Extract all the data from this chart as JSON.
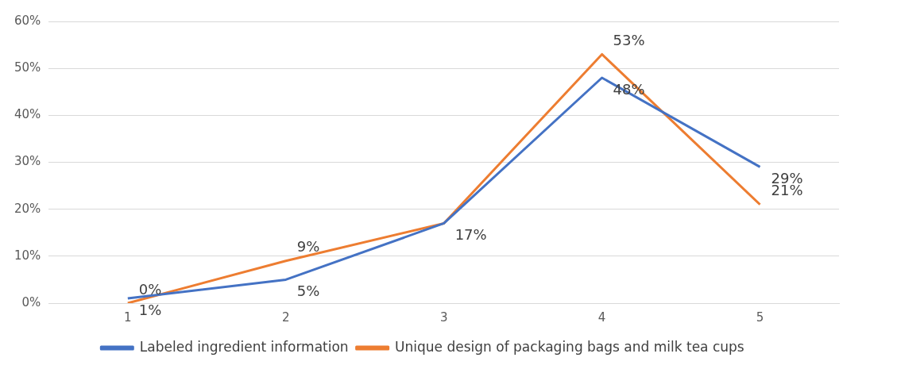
{
  "chart_data": {
    "type": "line",
    "categories": [
      "1",
      "2",
      "3",
      "4",
      "5"
    ],
    "series": [
      {
        "name": "Labeled ingredient information",
        "color": "#4472c4",
        "values": [
          1,
          5,
          17,
          48,
          29
        ],
        "value_labels": [
          "1%",
          "5%",
          "17%",
          "48%",
          "29%"
        ]
      },
      {
        "name": "Unique design of packaging bags and milk tea cups",
        "color": "#ed7d31",
        "values": [
          0,
          9,
          17,
          53,
          21
        ],
        "value_labels": [
          "0%",
          "9%",
          null,
          "53%",
          "21%"
        ]
      }
    ],
    "ylim": [
      0,
      60
    ],
    "yticks": [
      {
        "value": 0,
        "label": "0%"
      },
      {
        "value": 10,
        "label": "10%"
      },
      {
        "value": 20,
        "label": "20%"
      },
      {
        "value": 30,
        "label": "30%"
      },
      {
        "value": 40,
        "label": "40%"
      },
      {
        "value": 50,
        "label": "50%"
      },
      {
        "value": 60,
        "label": "60%"
      }
    ],
    "grid": "y",
    "legend": "bottom"
  }
}
